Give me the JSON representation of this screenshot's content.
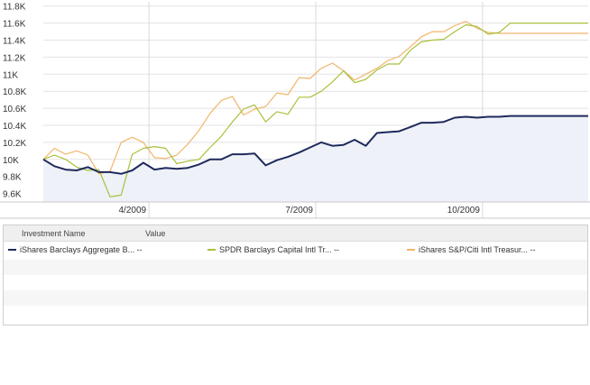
{
  "chart_data": {
    "type": "line",
    "y_ticks": [
      "11.8K",
      "11.6K",
      "11.4K",
      "11.2K",
      "11K",
      "10.8K",
      "10.6K",
      "10.4K",
      "10.2K",
      "10K",
      "9.8K",
      "9.6K"
    ],
    "y_tick_values": [
      11800,
      11600,
      11400,
      11200,
      11000,
      10800,
      10600,
      10400,
      10200,
      10000,
      9800,
      9600
    ],
    "ylim": [
      9500,
      11850
    ],
    "x_ticks": [
      "4/2009",
      "7/2009",
      "10/2009"
    ],
    "x_tick_index": [
      9.5,
      24.5,
      39.5
    ],
    "x_count": 50,
    "grid": true,
    "series": [
      {
        "name": "iShares Barclays Aggregate B...",
        "color": "#1f2a5c",
        "area": true,
        "values": [
          10000,
          9920,
          9880,
          9870,
          9910,
          9850,
          9850,
          9830,
          9870,
          9960,
          9880,
          9900,
          9890,
          9900,
          9940,
          10000,
          10000,
          10060,
          10060,
          10070,
          9930,
          9990,
          10030,
          10080,
          10140,
          10200,
          10160,
          10170,
          10230,
          10160,
          10310,
          10320,
          10330,
          10380,
          10430,
          10430,
          10440,
          10490,
          10500,
          10490,
          10500,
          10500,
          10510,
          10510,
          10510,
          10510,
          10510,
          10510,
          10510,
          10510
        ]
      },
      {
        "name": "SPDR Barclays Capital Intl Tr...",
        "color": "#a8c03a",
        "area": false,
        "values": [
          10000,
          10050,
          10000,
          9910,
          9870,
          9880,
          9560,
          9580,
          10060,
          10130,
          10150,
          10130,
          9950,
          9980,
          10000,
          10140,
          10270,
          10440,
          10590,
          10640,
          10440,
          10560,
          10530,
          10730,
          10730,
          10800,
          10910,
          11040,
          10900,
          10940,
          11050,
          11120,
          11120,
          11280,
          11380,
          11400,
          11410,
          11500,
          11580,
          11560,
          11470,
          11490,
          11600,
          11600,
          11600,
          11600,
          11600,
          11600,
          11600,
          11600
        ]
      },
      {
        "name": "iShares S&P/Citi Intl Treasur...",
        "color": "#f2b56b",
        "area": false,
        "values": [
          10000,
          10130,
          10060,
          10100,
          10050,
          9830,
          9860,
          10200,
          10260,
          10200,
          10020,
          10010,
          10050,
          10180,
          10340,
          10540,
          10690,
          10740,
          10520,
          10590,
          10620,
          10780,
          10760,
          10960,
          10950,
          11070,
          11130,
          11040,
          10930,
          11000,
          11070,
          11160,
          11210,
          11320,
          11440,
          11500,
          11500,
          11570,
          11620,
          11540,
          11490,
          11480,
          11480,
          11480,
          11480,
          11480,
          11480,
          11480,
          11480,
          11480
        ]
      }
    ]
  },
  "legend": {
    "header_name": "Investment Name",
    "header_value": "Value",
    "items": [
      {
        "label": "iShares Barclays Aggregate B...",
        "value": "--",
        "color": "#1f2a5c"
      },
      {
        "label": "SPDR Barclays Capital Intl Tr...",
        "value": "--",
        "color": "#a8c03a"
      },
      {
        "label": "iShares S&P/Citi Intl Treasur...",
        "value": "--",
        "color": "#f2b56b"
      }
    ]
  }
}
